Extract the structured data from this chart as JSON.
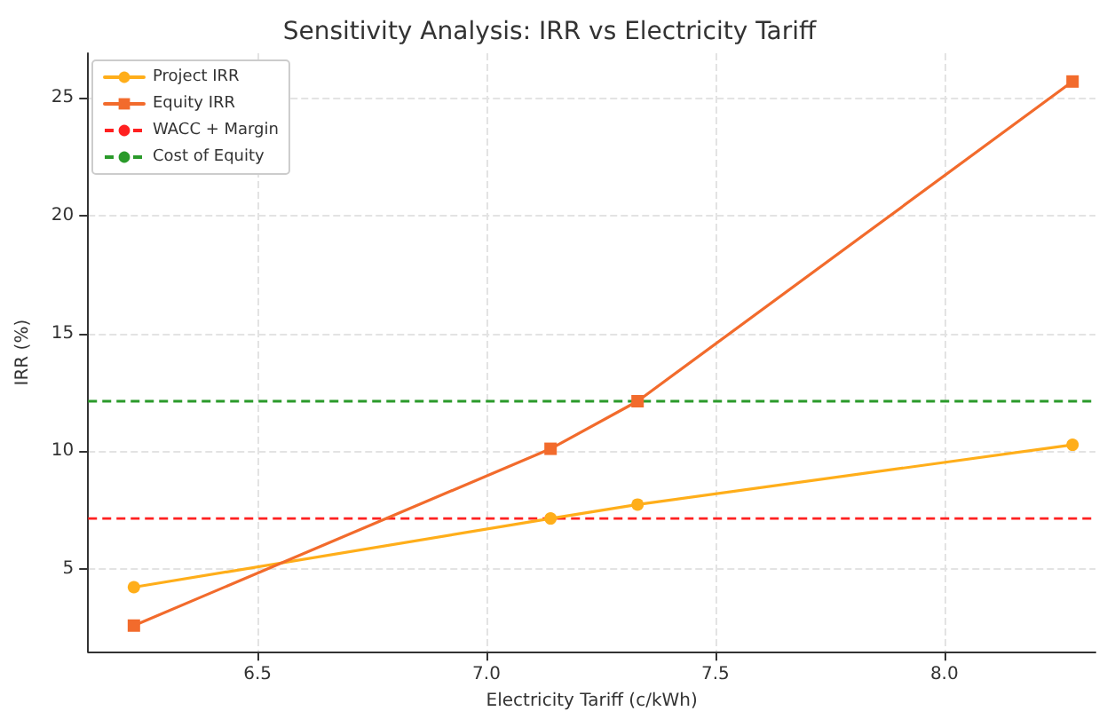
{
  "chart_data": {
    "type": "line",
    "title": "Sensitivity Analysis: IRR vs Electricity Tariff",
    "xlabel": "Electricity Tariff (c/kWh)",
    "ylabel": "IRR (%)",
    "x": [
      6.23,
      7.14,
      7.33,
      8.28
    ],
    "series": [
      {
        "name": "Project IRR",
        "color": "#ffae1a",
        "marker": "circle",
        "values": [
          4.22,
          7.14,
          7.73,
          10.27
        ]
      },
      {
        "name": "Equity IRR",
        "color": "#f26b2c",
        "marker": "square",
        "values": [
          2.59,
          10.1,
          12.12,
          25.7
        ]
      }
    ],
    "ref_lines": [
      {
        "axis": "y",
        "value": 7.14,
        "label": "WACC + Margin",
        "color": "#ff2020",
        "line_style": "dashed"
      },
      {
        "axis": "y",
        "value": 12.12,
        "label": "Cost of Equity",
        "color": "#2a9a2a",
        "line_style": "dashed"
      }
    ],
    "xlim": [
      6.13,
      8.33
    ],
    "xticks": [
      6.5,
      {
        "value": 7,
        "label": "7.0"
      },
      7.5,
      {
        "value": 8,
        "label": "8.0"
      }
    ],
    "ylim": [
      1.48,
      26.9
    ],
    "yticks": [
      5,
      10,
      15,
      20,
      25
    ],
    "grid": true,
    "legend": "top left",
    "line_style": "solid"
  }
}
